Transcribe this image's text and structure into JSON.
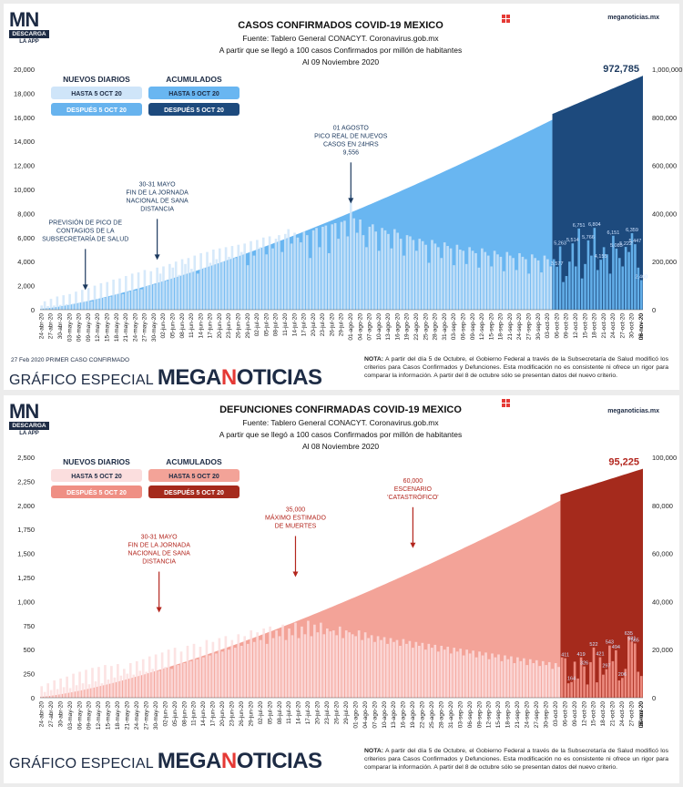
{
  "panels": [
    {
      "logo": {
        "mn": "MN",
        "badge": "DESCARGA",
        "sub": "LA APP"
      },
      "title": "CASOS CONFIRMADOS COVID-19 MEXICO",
      "source": "Fuente: Tablero General CONACYT. Coronavirus.gob.mx",
      "subtitle": "A partir que se llegó a 100 casos Confirmados por millón de habitantes",
      "date": "Al 09 Noviembre 2020",
      "site": "meganoticias.mx",
      "first_case": "27 Feb 2020 PRIMER CASO CONFIRMADO",
      "brand_small": "GRÁFICO ESPECIAL",
      "brand_big_a": "MEGA",
      "brand_big_n": "N",
      "brand_big_b": "OTICIAS",
      "note_label": "NOTA:",
      "note": "A partir del día 5 de Octubre, el Gobierno Federal a través de la Subsecretaría de Salud modificó los criterios para Casos Confirmados y Defunciones. Esta modificación no es consistente ni ofrece un rigor para comparar la información. A partir del 8 de octubre sólo se presentan datos del nuevo criterio.",
      "legend": {
        "daily_header": "NUEVOS DIARIOS",
        "cum_header": "ACUMULADOS",
        "daily_before": "HASTA 5 OCT 20",
        "daily_after": "DESPUÉS 5 OCT 20",
        "cum_before": "HASTA 5 OCT 20",
        "cum_after": "DESPUÉS 5 OCT 20"
      },
      "colors": {
        "daily_before": "#cfe5f9",
        "daily_after": "#67b3ee",
        "cum_before": "#69b6f1",
        "cum_after": "#1d4a7d",
        "label_text": "#1d3a5f"
      },
      "final_label": "972,785",
      "annotations": [
        {
          "text": [
            "PREVISIÓN DE PICO DE",
            "CONTAGIOS DE LA",
            "SUBSECRETARÍA DE SALUD"
          ],
          "x_index": 14,
          "y_top": 5200
        },
        {
          "text": [
            "30-31 MAYO",
            "FIN DE LA JORNADA",
            "NACIONAL DE SANA",
            "DISTANCIA"
          ],
          "x_index": 37,
          "y_top": 7700
        },
        {
          "text": [
            "01 AGOSTO",
            "PICO REAL DE NUEVOS",
            "CASOS EN 24HRS",
            "9,556"
          ],
          "x_index": 99,
          "y_top": 12400
        }
      ]
    },
    {
      "logo": {
        "mn": "MN",
        "badge": "DESCARGA",
        "sub": "LA APP"
      },
      "title": "DEFUNCIONES CONFIRMADAS COVID-19 MEXICO",
      "source": "Fuente: Tablero General CONACYT. Coronavirus.gob.mx",
      "subtitle": "A partir que se llegó a 100 casos Confirmados por millón de habitantes",
      "date": "Al 08 Noviembre 2020",
      "site": "meganoticias.mx",
      "brand_small": "GRÁFICO ESPECIAL",
      "brand_big_a": "MEGA",
      "brand_big_n": "N",
      "brand_big_b": "OTICIAS",
      "note_label": "NOTA:",
      "note": "A partir del día 5 de Octubre, el Gobierno Federal a través de la Subsecretaría de Salud modificó los criterios para Casos Confirmados y Defunciones. Esta modificación no es consistente ni ofrece un rigor para comparar la información. A partir del 8 de octubre sólo se presentan datos del nuevo criterio.",
      "legend": {
        "daily_header": "NUEVOS DIARIOS",
        "cum_header": "ACUMULADOS",
        "daily_before": "HASTA 5 OCT 20",
        "daily_after": "DESPUÉS 5 OCT 20",
        "cum_before": "HASTA 5 OCT 20",
        "cum_after": "DESPUÉS 5 OCT 20"
      },
      "colors": {
        "daily_before": "#fbdede",
        "daily_after": "#ef8f84",
        "cum_before": "#f3a398",
        "cum_after": "#a52a1c",
        "label_text": "#b3261e"
      },
      "final_label": "95,225",
      "annotations": [
        {
          "text": [
            "30-31 MAYO",
            "FIN DE LA JORNADA",
            "NACIONAL DE SANA",
            "DISTANCIA"
          ],
          "x_index": 37,
          "y_top": 1330
        },
        {
          "text": [
            "35,000",
            "MÁXIMO ESTIMADO",
            "DE MUERTES"
          ],
          "x_index": 80,
          "y_top": 1700
        },
        {
          "text": [
            "60,000",
            "ESCENARIO",
            "'CATASTRÓFICO'"
          ],
          "x_index": 117,
          "y_top": 2000
        }
      ]
    }
  ],
  "chart_data": [
    {
      "type": "bar",
      "title": "CASOS CONFIRMADOS COVID-19 MEXICO",
      "x_dates": [
        "24-abr-20",
        "27-abr-20",
        "30-abr-20",
        "03-may-20",
        "06-may-20",
        "09-may-20",
        "12-may-20",
        "15-may-20",
        "18-may-20",
        "21-may-20",
        "24-may-20",
        "27-may-20",
        "30-may-20",
        "02-jun-20",
        "05-jun-20",
        "08-jun-20",
        "11-jun-20",
        "14-jun-20",
        "17-jun-20",
        "20-jun-20",
        "23-jun-20",
        "26-jun-20",
        "29-jun-20",
        "02-jul-20",
        "05-jul-20",
        "08-jul-20",
        "11-jul-20",
        "14-jul-20",
        "17-jul-20",
        "20-jul-20",
        "23-jul-20",
        "26-jul-20",
        "29-jul-20",
        "01-ago-20",
        "04-ago-20",
        "07-ago-20",
        "10-ago-20",
        "13-ago-20",
        "16-ago-20",
        "19-ago-20",
        "22-ago-20",
        "25-ago-20",
        "28-ago-20",
        "31-ago-20",
        "03-sep-20",
        "06-sep-20",
        "09-sep-20",
        "12-sep-20",
        "15-sep-20",
        "18-sep-20",
        "21-sep-20",
        "24-sep-20",
        "27-sep-20",
        "30-sep-20",
        "03-oct-20",
        "06-oct-20",
        "09-oct-20",
        "12-oct-20",
        "15-oct-20",
        "18-oct-20",
        "21-oct-20",
        "24-oct-20",
        "27-oct-20",
        "30-oct-20",
        "02-nov-20",
        "05-nov-20",
        "08-nov-20",
        "09-nov-20"
      ],
      "split_index": 164,
      "daily_before": [
        350,
        700,
        300,
        900,
        350,
        1100,
        400,
        1200,
        450,
        1300,
        500,
        1500,
        600,
        1650,
        700,
        1800,
        700,
        2000,
        900,
        2200,
        1000,
        2300,
        1100,
        2500,
        1300,
        2600,
        1300,
        2800,
        1500,
        3000,
        1600,
        3100,
        1700,
        3300,
        2000,
        3200,
        2100,
        3500,
        3000,
        3600,
        2400,
        3800,
        3500,
        4000,
        2900,
        4200,
        3800,
        4300,
        3400,
        4500,
        3000,
        4700,
        3500,
        4800,
        3900,
        5000,
        4200,
        5100,
        4000,
        5200,
        4400,
        5300,
        4300,
        5400,
        4800,
        5500,
        3700,
        5700,
        4500,
        5800,
        5200,
        6000,
        4600,
        6100,
        5100,
        5900,
        6200,
        4800,
        6300,
        6700,
        5500,
        6400,
        6000,
        5600,
        6500,
        6200,
        4300,
        6600,
        6800,
        5200,
        6900,
        7000,
        4700,
        7100,
        7200,
        5900,
        7300,
        7400,
        6100,
        9556,
        7600,
        6400,
        7500,
        6200,
        5200,
        6900,
        7100,
        6500,
        4900,
        6800,
        6600,
        6300,
        5100,
        6700,
        6400,
        5900,
        4500,
        6200,
        6100,
        5800,
        4900,
        5900,
        5700,
        5400,
        3900,
        5800,
        5500,
        5200,
        4300,
        5600,
        5300,
        5100,
        3700,
        5400,
        5000,
        4900,
        3800,
        5200,
        4900,
        4700,
        3500,
        5100,
        4800,
        4500,
        3600,
        4900,
        4600,
        4400,
        3200,
        4800,
        4500,
        4300,
        3300,
        4700,
        4400,
        4200,
        3000,
        4600,
        4300,
        4100,
        3100,
        4500,
        4200,
        3600
      ],
      "daily_after": [
        4200,
        3577,
        5263,
        2300,
        2800,
        4000,
        5514,
        3600,
        6751,
        2600,
        3800,
        5766,
        4500,
        6804,
        3300,
        4155,
        5200,
        4600,
        3000,
        6151,
        5085,
        4300,
        3600,
        5222,
        4800,
        6359,
        5447,
        3500,
        2460
      ],
      "cum_before_end": 790000,
      "cum_end": 972785,
      "daily_axis": [
        0,
        20000
      ],
      "cum_axis": [
        0,
        1000000
      ],
      "daily_ticks": [
        "0",
        "2,000",
        "4,000",
        "6,000",
        "8,000",
        "10,000",
        "12,000",
        "14,000",
        "16,000",
        "18,000",
        "20,000"
      ],
      "cum_ticks": [
        "0",
        "200,000",
        "400,000",
        "600,000",
        "800,000",
        "1,000,000"
      ],
      "after_labels": [
        {
          "i": 1,
          "t": "3,577"
        },
        {
          "i": 2,
          "t": "5,263"
        },
        {
          "i": 6,
          "t": "5,514"
        },
        {
          "i": 8,
          "t": "6,751"
        },
        {
          "i": 11,
          "t": "5,766"
        },
        {
          "i": 13,
          "t": "6,804"
        },
        {
          "i": 15,
          "t": "4,155"
        },
        {
          "i": 19,
          "t": "6,151"
        },
        {
          "i": 20,
          "t": "5,085"
        },
        {
          "i": 23,
          "t": "5,222"
        },
        {
          "i": 25,
          "t": "6,359"
        },
        {
          "i": 26,
          "t": "5,447"
        },
        {
          "i": 28,
          "t": "2,460"
        }
      ]
    },
    {
      "type": "bar",
      "title": "DEFUNCIONES CONFIRMADAS COVID-19 MEXICO",
      "x_dates": [
        "24-abr-20",
        "27-abr-20",
        "30-abr-20",
        "03-may-20",
        "06-may-20",
        "09-may-20",
        "12-may-20",
        "15-may-20",
        "18-may-20",
        "21-may-20",
        "24-may-20",
        "27-may-20",
        "30-may-20",
        "02-jun-20",
        "05-jun-20",
        "08-jun-20",
        "11-jun-20",
        "14-jun-20",
        "17-jun-20",
        "20-jun-20",
        "23-jun-20",
        "26-jun-20",
        "29-jun-20",
        "02-jul-20",
        "05-jul-20",
        "08-jul-20",
        "11-jul-20",
        "14-jul-20",
        "17-jul-20",
        "20-jul-20",
        "23-jul-20",
        "26-jul-20",
        "29-jul-20",
        "01-ago-20",
        "04-ago-20",
        "07-ago-20",
        "10-ago-20",
        "13-ago-20",
        "16-ago-20",
        "19-ago-20",
        "22-ago-20",
        "25-ago-20",
        "28-ago-20",
        "31-ago-20",
        "03-sep-20",
        "06-sep-20",
        "09-sep-20",
        "12-sep-20",
        "15-sep-20",
        "18-sep-20",
        "21-sep-20",
        "24-sep-20",
        "27-sep-20",
        "30-sep-20",
        "03-oct-20",
        "06-oct-20",
        "09-oct-20",
        "12-oct-20",
        "15-oct-20",
        "18-oct-20",
        "21-oct-20",
        "24-oct-20",
        "27-oct-20",
        "30-oct-20",
        "02-nov-20",
        "05-nov-20",
        "08-nov-20"
      ],
      "split_index": 164,
      "daily_before": [
        120,
        60,
        150,
        80,
        180,
        90,
        200,
        110,
        220,
        100,
        250,
        130,
        270,
        150,
        290,
        140,
        310,
        170,
        320,
        150,
        340,
        190,
        330,
        210,
        350,
        230,
        300,
        250,
        360,
        240,
        380,
        280,
        400,
        270,
        430,
        300,
        450,
        280,
        470,
        320,
        500,
        300,
        520,
        340,
        480,
        360,
        540,
        380,
        560,
        400,
        530,
        420,
        600,
        440,
        580,
        460,
        620,
        480,
        640,
        500,
        600,
        520,
        660,
        540,
        640,
        560,
        700,
        580,
        680,
        600,
        720,
        560,
        740,
        620,
        700,
        640,
        760,
        600,
        720,
        650,
        780,
        620,
        740,
        660,
        800,
        640,
        760,
        680,
        780,
        660,
        720,
        690,
        700,
        650,
        740,
        620,
        700,
        680,
        660,
        640,
        700,
        600,
        680,
        620,
        650,
        580,
        640,
        600,
        630,
        560,
        620,
        580,
        600,
        540,
        610,
        560,
        590,
        520,
        580,
        540,
        570,
        500,
        560,
        520,
        550,
        480,
        540,
        500,
        530,
        460,
        520,
        480,
        510,
        440,
        500,
        460,
        490,
        420,
        480,
        440,
        470,
        400,
        460,
        420,
        450,
        380,
        440,
        400,
        430,
        360,
        420,
        380,
        410,
        340,
        400,
        360,
        390,
        330,
        380,
        340,
        370,
        300,
        360,
        320
      ],
      "daily_after": [
        420,
        411,
        150,
        164,
        375,
        200,
        419,
        326,
        138,
        370,
        522,
        160,
        421,
        240,
        297,
        543,
        380,
        494,
        180,
        206,
        300,
        635,
        581,
        565,
        270,
        226
      ],
      "cum_before_end": 82000,
      "cum_end": 95225,
      "daily_axis": [
        0,
        2500
      ],
      "cum_axis": [
        0,
        100000
      ],
      "daily_ticks": [
        "0",
        "250",
        "500",
        "750",
        "1,000",
        "1,250",
        "1,500",
        "1,750",
        "2,000",
        "2,250",
        "2,500"
      ],
      "cum_ticks": [
        "0",
        "20,000",
        "40,000",
        "60,000",
        "80,000",
        "100,000"
      ],
      "after_labels": [
        {
          "i": 1,
          "t": "411"
        },
        {
          "i": 3,
          "t": "164"
        },
        {
          "i": 6,
          "t": "419"
        },
        {
          "i": 7,
          "t": "326"
        },
        {
          "i": 10,
          "t": "522"
        },
        {
          "i": 12,
          "t": "421"
        },
        {
          "i": 14,
          "t": "297"
        },
        {
          "i": 15,
          "t": "543"
        },
        {
          "i": 17,
          "t": "494"
        },
        {
          "i": 19,
          "t": "206"
        },
        {
          "i": 21,
          "t": "635"
        },
        {
          "i": 22,
          "t": "581"
        },
        {
          "i": 23,
          "t": "565"
        }
      ]
    }
  ]
}
